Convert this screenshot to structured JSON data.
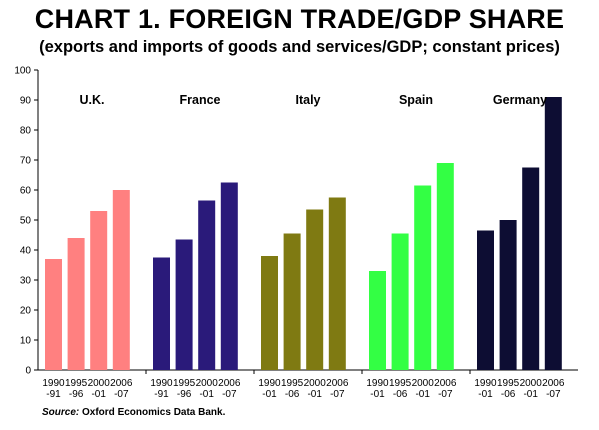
{
  "title": "CHART 1. FOREIGN TRADE/GDP SHARE",
  "subtitle": "(exports and imports of goods and services/GDP; constant prices)",
  "source": {
    "label": "Source:",
    "text": " Oxford Economics Data Bank."
  },
  "chart_data": {
    "type": "bar",
    "ylim": [
      0,
      100
    ],
    "yticks": [
      "0",
      "10",
      "20",
      "30",
      "40",
      "50",
      "60",
      "70",
      "80",
      "90",
      "100"
    ],
    "grid": false,
    "groups": [
      {
        "name": "U.K.",
        "color": "#ff8080",
        "periods": [
          [
            "1990",
            "-91"
          ],
          [
            "1995",
            "-96"
          ],
          [
            "2000",
            "-01"
          ],
          [
            "2006",
            "-07"
          ]
        ],
        "values": [
          37,
          44,
          53,
          60
        ]
      },
      {
        "name": "France",
        "color": "#2a1a7a",
        "periods": [
          [
            "1990",
            "-91"
          ],
          [
            "1995",
            "-96"
          ],
          [
            "2000",
            "-01"
          ],
          [
            "2006",
            "-07"
          ]
        ],
        "values": [
          37.5,
          43.5,
          56.5,
          62.5
        ]
      },
      {
        "name": "Italy",
        "color": "#7f7a12",
        "periods": [
          [
            "1990",
            "-01"
          ],
          [
            "1995",
            "-06"
          ],
          [
            "2000",
            "-01"
          ],
          [
            "2006",
            "-07"
          ]
        ],
        "values": [
          38,
          45.5,
          53.5,
          57.5
        ]
      },
      {
        "name": "Spain",
        "color": "#33ff44",
        "periods": [
          [
            "1990",
            "-01"
          ],
          [
            "1995",
            "-06"
          ],
          [
            "2000",
            "-01"
          ],
          [
            "2006",
            "-07"
          ]
        ],
        "values": [
          33,
          45.5,
          61.5,
          69
        ]
      },
      {
        "name": "Germany",
        "color": "#0d0d33",
        "periods": [
          [
            "1990",
            "-01"
          ],
          [
            "1995",
            "-06"
          ],
          [
            "2000",
            "-01"
          ],
          [
            "2006",
            "-07"
          ]
        ],
        "values": [
          46.5,
          50,
          67.5,
          91
        ]
      }
    ]
  }
}
